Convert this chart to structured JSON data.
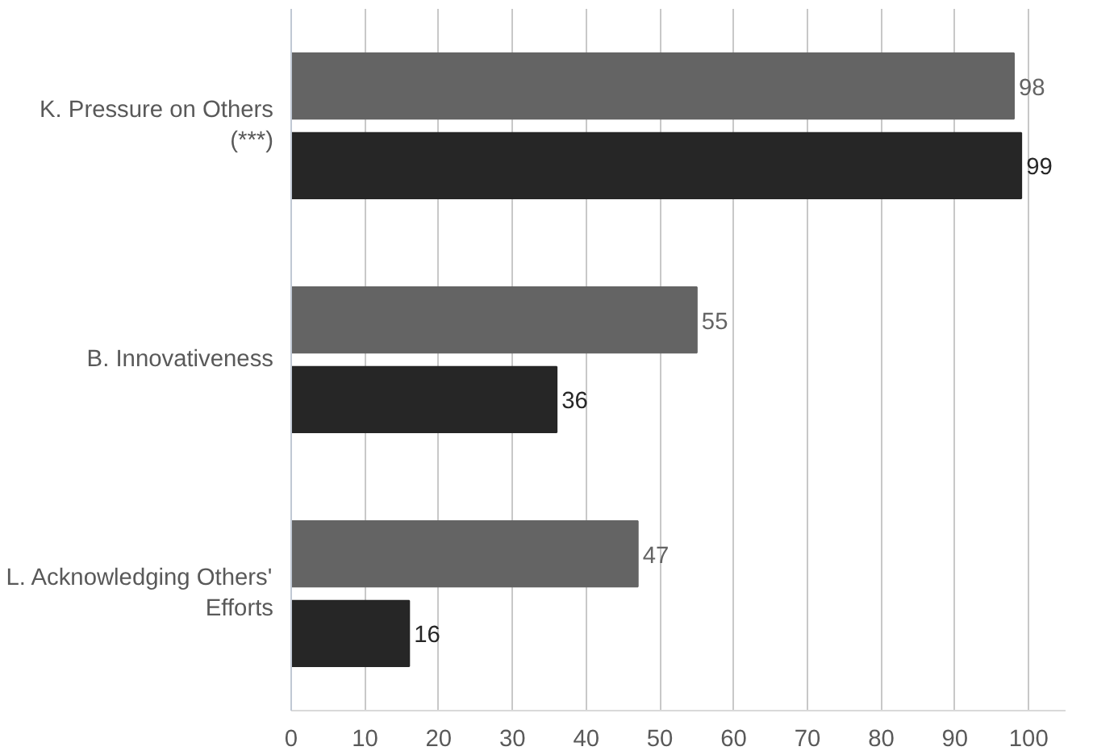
{
  "chart_data": {
    "type": "bar",
    "orientation": "horizontal",
    "categories": [
      "K. Pressure on Others\n(***)",
      "B. Innovativeness",
      "L. Acknowledging Others'\nEfforts"
    ],
    "series": [
      {
        "color": "#646464",
        "values": [
          98,
          55,
          47
        ]
      },
      {
        "color": "#262626",
        "values": [
          99,
          36,
          16
        ]
      }
    ],
    "xlim": [
      0,
      105
    ],
    "xticks": [
      0,
      10,
      20,
      30,
      40,
      50,
      60,
      70,
      80,
      90,
      100
    ],
    "grid": "x",
    "data_labels": true
  }
}
